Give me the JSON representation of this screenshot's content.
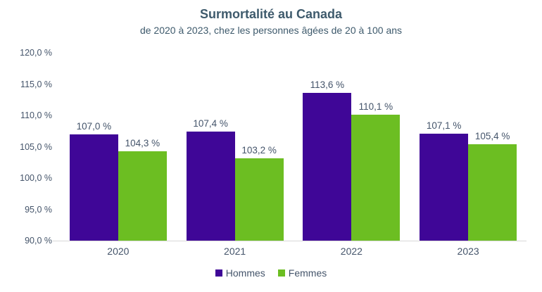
{
  "chart_data": {
    "type": "bar",
    "title": "Surmortalité au Canada",
    "subtitle": "de 2020 à 2023, chez les personnes âgées de 20 à 100 ans",
    "categories": [
      "2020",
      "2021",
      "2022",
      "2023"
    ],
    "series": [
      {
        "name": "Hommes",
        "color": "#3F0697",
        "values": [
          107.0,
          107.4,
          113.6,
          107.1
        ],
        "labels": [
          "107,0 %",
          "107,4 %",
          "113,6 %",
          "107,1 %"
        ]
      },
      {
        "name": "Femmes",
        "color": "#6CBE22",
        "values": [
          104.3,
          103.2,
          110.1,
          105.4
        ],
        "labels": [
          "104,3 %",
          "103,2 %",
          "110,1 %",
          "105,4 %"
        ]
      }
    ],
    "ylim": [
      90,
      120
    ],
    "yticks": [
      {
        "value": 120,
        "label": "120,0 %"
      },
      {
        "value": 115,
        "label": "115,0 %"
      },
      {
        "value": 110,
        "label": "110,0 %"
      },
      {
        "value": 105,
        "label": "105,0 %"
      },
      {
        "value": 100,
        "label": "100,0 %"
      },
      {
        "value": 95,
        "label": "95,0 %"
      },
      {
        "value": 90,
        "label": "90,0 %"
      }
    ],
    "grid": false,
    "legend_position": "bottom",
    "colors": {
      "text": "#44546A",
      "title_text": "#3E5A6C",
      "axis_line": "#D9D9D9",
      "background": "#FFFFFF"
    }
  }
}
